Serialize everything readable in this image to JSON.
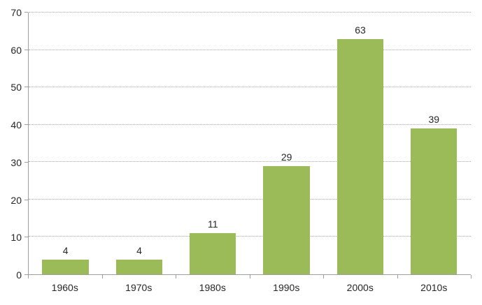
{
  "chart_data": {
    "type": "bar",
    "title": "",
    "xlabel": "",
    "ylabel": "",
    "categories": [
      "1960s",
      "1970s",
      "1980s",
      "1990s",
      "2000s",
      "2010s"
    ],
    "values": [
      4,
      4,
      11,
      29,
      63,
      39
    ],
    "data_labels": [
      "4",
      "4",
      "11",
      "29",
      "63",
      "39"
    ],
    "ylim": [
      0,
      70
    ],
    "yticks": [
      0,
      10,
      20,
      30,
      40,
      50,
      60,
      70
    ],
    "grid": "horizontal-dotted",
    "legend": "none",
    "colors": {
      "bar": "#9BBB59",
      "axis": "#9E9E9E",
      "gridline": "#A6A6A6",
      "text": "#262626",
      "background": "#FFFFFF"
    }
  }
}
